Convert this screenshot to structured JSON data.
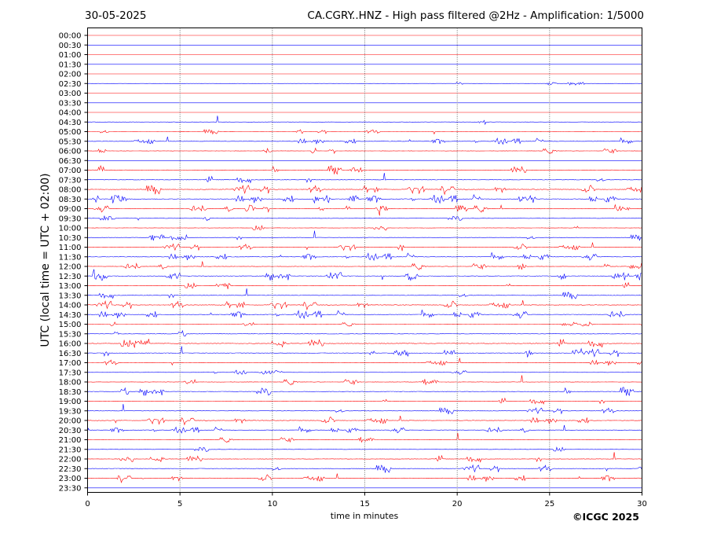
{
  "header": {
    "date": "30-05-2025",
    "title": "CA.CGRY..HNZ - High pass filtered @2Hz - Amplification: 1/5000"
  },
  "footer": {
    "copyright": "©ICGC 2025"
  },
  "chart_data": {
    "type": "line",
    "subtype": "helicorder",
    "xlabel": "time in minutes",
    "ylabel": "UTC (local time = UTC + 02:00)",
    "xlim": [
      0,
      30
    ],
    "xticks": [
      0,
      5,
      10,
      15,
      20,
      25,
      30
    ],
    "grid": "vertical dotted lines at 5-minute intervals",
    "colors": {
      "even_trace": "#ff0000",
      "odd_trace": "#0000ff",
      "axis": "#000000",
      "grid": "#555555"
    },
    "row_labels": [
      "00:00",
      "00:30",
      "01:00",
      "01:30",
      "02:00",
      "02:30",
      "03:00",
      "03:30",
      "04:00",
      "04:30",
      "05:00",
      "05:30",
      "06:00",
      "06:30",
      "07:00",
      "07:30",
      "08:00",
      "08:30",
      "09:00",
      "09:30",
      "10:00",
      "10:30",
      "11:00",
      "11:30",
      "12:00",
      "12:30",
      "13:00",
      "13:30",
      "14:00",
      "14:30",
      "15:00",
      "15:30",
      "16:00",
      "16:30",
      "17:00",
      "17:30",
      "18:00",
      "18:30",
      "19:00",
      "19:30",
      "20:00",
      "20:30",
      "21:00",
      "21:30",
      "22:00",
      "22:30",
      "23:00",
      "23:30"
    ],
    "activity_note": "approximate noise level per row (0 = quiet)",
    "activity": [
      0,
      0,
      0,
      0,
      0,
      0.1,
      0,
      0,
      0,
      0.4,
      0.3,
      0.6,
      0.5,
      0,
      0.9,
      0.7,
      1,
      1,
      0.8,
      0.4,
      0.5,
      0.5,
      0.7,
      0.8,
      0.7,
      1,
      0.6,
      0.7,
      0.9,
      0.9,
      0.3,
      0.7,
      1,
      0.9,
      0.6,
      0.3,
      0.6,
      0.9,
      0.6,
      0.6,
      0.8,
      0.6,
      0.5,
      0.4,
      0.7,
      0.8,
      0.8,
      0
    ]
  }
}
